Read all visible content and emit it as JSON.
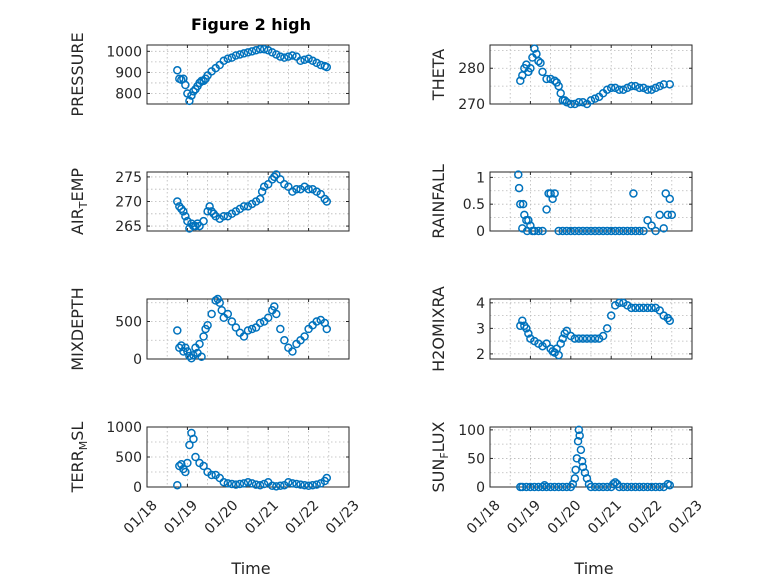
{
  "figure": {
    "title": "Figure 2 high",
    "xlabel": "Time",
    "colors": {
      "marker": "#0072bd",
      "axes": "#262626",
      "grid": "#b8b8b8"
    }
  },
  "chart_data": [
    {
      "type": "scatter",
      "id": "pressure",
      "ylabel": "PRESSURE",
      "yticks": [
        800,
        900,
        1000
      ],
      "ylim": [
        750,
        1030
      ],
      "grid": true,
      "x": [
        18.75,
        18.8,
        18.85,
        18.9,
        18.95,
        19.0,
        19.05,
        19.1,
        19.15,
        19.2,
        19.25,
        19.3,
        19.35,
        19.4,
        19.45,
        19.5,
        19.6,
        19.7,
        19.8,
        19.9,
        20.0,
        20.1,
        20.2,
        20.3,
        20.4,
        20.5,
        20.6,
        20.7,
        20.8,
        20.9,
        21.0,
        21.1,
        21.2,
        21.3,
        21.4,
        21.5,
        21.6,
        21.7,
        21.8,
        21.9,
        22.0,
        22.1,
        22.2,
        22.3,
        22.4,
        22.45
      ],
      "y": [
        910,
        870,
        865,
        870,
        840,
        800,
        765,
        790,
        810,
        820,
        835,
        850,
        860,
        860,
        870,
        885,
        905,
        920,
        935,
        955,
        965,
        970,
        980,
        985,
        990,
        995,
        1000,
        1005,
        1010,
        1010,
        1005,
        995,
        985,
        975,
        970,
        975,
        980,
        975,
        955,
        960,
        965,
        955,
        945,
        935,
        930,
        925
      ]
    },
    {
      "type": "scatter",
      "id": "theta",
      "ylabel": "THETA",
      "yticks": [
        270,
        280
      ],
      "ylim": [
        270,
        286.5
      ],
      "grid": true,
      "x": [
        18.75,
        18.8,
        18.85,
        18.9,
        18.95,
        19.0,
        19.05,
        19.1,
        19.15,
        19.2,
        19.25,
        19.3,
        19.4,
        19.5,
        19.6,
        19.65,
        19.7,
        19.75,
        19.8,
        19.85,
        19.9,
        20.0,
        20.1,
        20.2,
        20.3,
        20.4,
        20.5,
        20.6,
        20.7,
        20.8,
        20.9,
        21.0,
        21.1,
        21.2,
        21.3,
        21.4,
        21.5,
        21.6,
        21.7,
        21.8,
        21.9,
        22.0,
        22.1,
        22.2,
        22.3,
        22.45
      ],
      "y": [
        276.5,
        278,
        280,
        281,
        279,
        280,
        283,
        285.5,
        284,
        282,
        281.5,
        279,
        277,
        277,
        276.5,
        276,
        275,
        273,
        271,
        271,
        270.5,
        270,
        270,
        270.5,
        270.5,
        270,
        271,
        271.5,
        272,
        273,
        274,
        274.5,
        274.5,
        274,
        274,
        274.5,
        275,
        275,
        274.5,
        274.5,
        274,
        274,
        274.5,
        275,
        275.5,
        275.5
      ]
    },
    {
      "type": "scatter",
      "id": "air_temp",
      "ylabel": "AIR",
      "ylabel_sub": "T",
      "ylabel_rest": "EMP",
      "yticks": [
        265,
        270,
        275
      ],
      "ylim": [
        264,
        276
      ],
      "grid": true,
      "x": [
        18.75,
        18.8,
        18.85,
        18.9,
        18.95,
        19.0,
        19.05,
        19.1,
        19.15,
        19.2,
        19.25,
        19.3,
        19.4,
        19.5,
        19.55,
        19.6,
        19.65,
        19.7,
        19.8,
        19.9,
        20.0,
        20.1,
        20.2,
        20.3,
        20.4,
        20.5,
        20.6,
        20.7,
        20.8,
        20.85,
        20.9,
        21.0,
        21.1,
        21.15,
        21.2,
        21.3,
        21.4,
        21.5,
        21.6,
        21.7,
        21.8,
        21.9,
        22.0,
        22.1,
        22.2,
        22.3,
        22.4,
        22.45
      ],
      "y": [
        270,
        269,
        268.5,
        268,
        267,
        266,
        264.5,
        265.5,
        265,
        265,
        265.5,
        265,
        266,
        268,
        269,
        268,
        267.5,
        267,
        266.5,
        267,
        267,
        267.5,
        268,
        268.5,
        269,
        269,
        269.5,
        270,
        270.5,
        272,
        273,
        273.5,
        274.5,
        275,
        275.5,
        274.5,
        273.5,
        273,
        272,
        272.5,
        272.5,
        273,
        272.5,
        272.5,
        272,
        271.5,
        270.5,
        270
      ]
    },
    {
      "type": "scatter",
      "id": "rainfall",
      "ylabel": "RAINFALL",
      "yticks": [
        0,
        0.5,
        1
      ],
      "ylim": [
        0,
        1.1
      ],
      "grid": true,
      "x": [
        18.7,
        18.72,
        18.75,
        18.8,
        18.82,
        18.85,
        18.9,
        18.92,
        18.95,
        19.0,
        19.05,
        19.1,
        19.2,
        19.3,
        19.4,
        19.45,
        19.5,
        19.55,
        19.6,
        19.7,
        19.8,
        19.9,
        20.0,
        20.1,
        20.2,
        20.3,
        20.4,
        20.5,
        20.6,
        20.7,
        20.8,
        20.9,
        21.0,
        21.1,
        21.2,
        21.3,
        21.4,
        21.5,
        21.55,
        21.6,
        21.7,
        21.8,
        21.9,
        22.0,
        22.1,
        22.2,
        22.3,
        22.35,
        22.4,
        22.45,
        22.5
      ],
      "y": [
        1.05,
        0.8,
        0.5,
        0.05,
        0.5,
        0.3,
        0.2,
        0,
        0.2,
        0.1,
        0,
        0,
        0,
        0,
        0.4,
        0.7,
        0.7,
        0.6,
        0.7,
        0,
        0,
        0,
        0,
        0,
        0,
        0,
        0,
        0,
        0,
        0,
        0,
        0,
        0,
        0,
        0,
        0,
        0,
        0,
        0.7,
        0,
        0,
        0,
        0.2,
        0.1,
        0,
        0.3,
        0.05,
        0.7,
        0.3,
        0.6,
        0.3
      ]
    },
    {
      "type": "scatter",
      "id": "mixdepth",
      "ylabel": "MIXDEPTH",
      "yticks": [
        0,
        500
      ],
      "ylim": [
        0,
        800
      ],
      "grid": true,
      "x": [
        18.75,
        18.8,
        18.85,
        18.9,
        18.95,
        19.0,
        19.05,
        19.1,
        19.15,
        19.2,
        19.25,
        19.3,
        19.35,
        19.4,
        19.45,
        19.5,
        19.6,
        19.7,
        19.75,
        19.8,
        19.85,
        19.9,
        20.0,
        20.1,
        20.2,
        20.3,
        20.4,
        20.5,
        20.6,
        20.7,
        20.8,
        20.9,
        21.0,
        21.1,
        21.15,
        21.2,
        21.3,
        21.4,
        21.5,
        21.6,
        21.7,
        21.8,
        21.9,
        22.0,
        22.1,
        22.2,
        22.3,
        22.4,
        22.45
      ],
      "y": [
        380,
        150,
        180,
        100,
        150,
        100,
        40,
        10,
        50,
        150,
        80,
        200,
        30,
        300,
        400,
        450,
        600,
        780,
        800,
        750,
        650,
        550,
        600,
        500,
        420,
        350,
        300,
        380,
        400,
        420,
        480,
        500,
        550,
        650,
        700,
        600,
        400,
        250,
        150,
        100,
        200,
        250,
        300,
        400,
        450,
        500,
        520,
        480,
        400
      ]
    },
    {
      "type": "scatter",
      "id": "h2omixra",
      "ylabel": "H2OMIXRA",
      "yticks": [
        2,
        3,
        4
      ],
      "ylim": [
        1.8,
        4.15
      ],
      "grid": true,
      "x": [
        18.75,
        18.8,
        18.85,
        18.9,
        18.95,
        19.0,
        19.1,
        19.2,
        19.3,
        19.4,
        19.5,
        19.55,
        19.6,
        19.65,
        19.7,
        19.75,
        19.8,
        19.85,
        19.9,
        20.0,
        20.1,
        20.2,
        20.3,
        20.4,
        20.5,
        20.6,
        20.7,
        20.8,
        20.9,
        21.0,
        21.1,
        21.2,
        21.3,
        21.4,
        21.5,
        21.6,
        21.7,
        21.8,
        21.9,
        22.0,
        22.1,
        22.2,
        22.3,
        22.4,
        22.45
      ],
      "y": [
        3.1,
        3.3,
        3.1,
        3.0,
        2.8,
        2.6,
        2.5,
        2.4,
        2.3,
        2.4,
        2.2,
        2.1,
        2.05,
        2.2,
        1.95,
        2.4,
        2.6,
        2.8,
        2.9,
        2.7,
        2.6,
        2.6,
        2.6,
        2.6,
        2.6,
        2.6,
        2.6,
        2.7,
        3.0,
        3.5,
        3.9,
        4.0,
        4.0,
        3.9,
        3.8,
        3.8,
        3.8,
        3.8,
        3.8,
        3.8,
        3.8,
        3.7,
        3.5,
        3.4,
        3.3
      ]
    },
    {
      "type": "scatter",
      "id": "terr_msl",
      "ylabel": "TERR",
      "ylabel_sub": "M",
      "ylabel_rest": "SL",
      "yticks": [
        0,
        500,
        1000
      ],
      "ylim": [
        0,
        1000
      ],
      "grid": true,
      "x": [
        18.75,
        18.8,
        18.85,
        18.9,
        18.95,
        19.0,
        19.05,
        19.1,
        19.15,
        19.2,
        19.3,
        19.4,
        19.5,
        19.6,
        19.7,
        19.8,
        19.9,
        20.0,
        20.1,
        20.2,
        20.3,
        20.4,
        20.5,
        20.6,
        20.7,
        20.8,
        20.9,
        21.0,
        21.1,
        21.2,
        21.3,
        21.4,
        21.5,
        21.6,
        21.7,
        21.8,
        21.9,
        22.0,
        22.1,
        22.2,
        22.3,
        22.4,
        22.45
      ],
      "y": [
        30,
        350,
        380,
        300,
        250,
        400,
        700,
        900,
        800,
        500,
        400,
        350,
        250,
        200,
        200,
        150,
        80,
        60,
        50,
        40,
        50,
        60,
        80,
        60,
        40,
        30,
        50,
        80,
        20,
        10,
        20,
        30,
        80,
        60,
        50,
        40,
        30,
        20,
        30,
        40,
        60,
        100,
        150
      ]
    },
    {
      "type": "scatter",
      "id": "sun_flux",
      "ylabel": "SUN",
      "ylabel_sub": "F",
      "ylabel_rest": "LUX",
      "yticks": [
        0,
        50,
        100
      ],
      "ylim": [
        0,
        105
      ],
      "grid": true,
      "x": [
        18.75,
        18.8,
        18.9,
        19.0,
        19.1,
        19.2,
        19.3,
        19.35,
        19.4,
        19.5,
        19.6,
        19.7,
        19.8,
        19.9,
        20.0,
        20.05,
        20.1,
        20.12,
        20.15,
        20.18,
        20.2,
        20.22,
        20.25,
        20.28,
        20.3,
        20.35,
        20.4,
        20.45,
        20.5,
        20.6,
        20.7,
        20.8,
        20.9,
        21.0,
        21.05,
        21.1,
        21.15,
        21.2,
        21.3,
        21.4,
        21.5,
        21.6,
        21.7,
        21.8,
        21.9,
        22.0,
        22.1,
        22.2,
        22.3,
        22.4,
        22.45
      ],
      "y": [
        0,
        0,
        0,
        0,
        0,
        0,
        0,
        3,
        0,
        0,
        0,
        0,
        0,
        0,
        0,
        5,
        15,
        30,
        50,
        80,
        100,
        90,
        65,
        45,
        35,
        25,
        15,
        5,
        0,
        0,
        0,
        0,
        0,
        0,
        5,
        8,
        5,
        0,
        0,
        0,
        0,
        0,
        0,
        0,
        0,
        0,
        0,
        0,
        0,
        5,
        3
      ]
    }
  ],
  "x_axis": {
    "ticks": [
      18,
      19,
      20,
      21,
      22,
      23
    ],
    "labels": [
      "01/18",
      "01/19",
      "01/20",
      "01/21",
      "01/22",
      "01/23"
    ]
  }
}
